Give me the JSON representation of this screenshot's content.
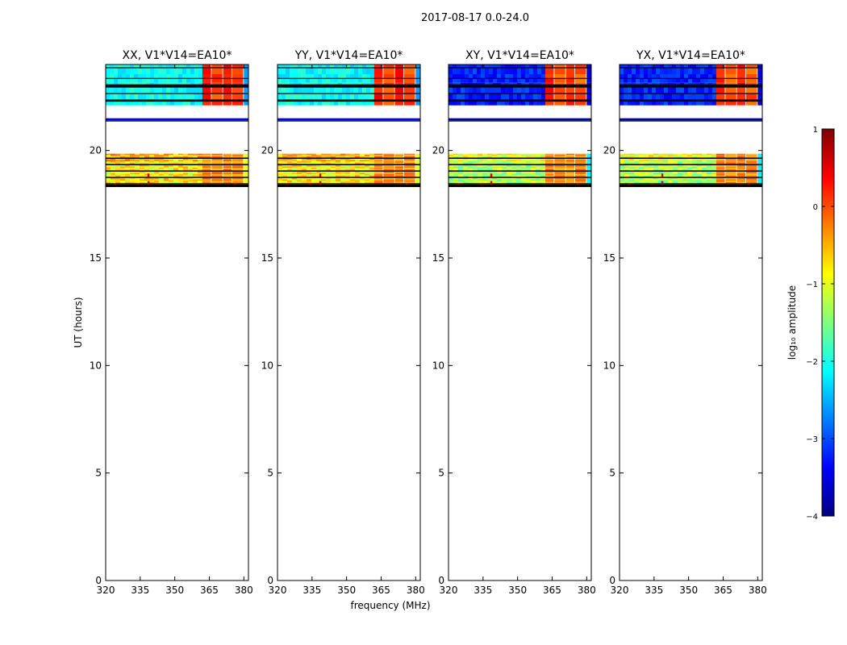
{
  "figure_title": "2017-08-17 0.0-24.0",
  "colors": {
    "jet_stops": [
      "#00007f",
      "#0000ff",
      "#007fff",
      "#00ffff",
      "#7fff7f",
      "#ffff00",
      "#ff7f00",
      "#ff0000",
      "#7f0000"
    ]
  },
  "chart_data": [
    {
      "type": "heatmap",
      "title": "XX, V1*V14=EA10*",
      "polarization": "XX",
      "ylabel": "UT (hours)",
      "xlim": [
        320,
        382
      ],
      "ylim": [
        0,
        24
      ],
      "xticks": [
        "320",
        "335",
        "350",
        "365",
        "380"
      ],
      "yticks": [
        "0",
        "5",
        "10",
        "15",
        "20"
      ],
      "data_coverage_hours": [
        [
          18.3,
          21.4
        ],
        [
          21.4,
          24.0
        ]
      ],
      "band_low_level_log10": -2.1,
      "band_high_level_log10": 0.2
    },
    {
      "type": "heatmap",
      "title": "YY, V1*V14=EA10*",
      "polarization": "YY",
      "xlabel": "frequency (MHz)",
      "xlim": [
        320,
        382
      ],
      "ylim": [
        0,
        24
      ],
      "xticks": [
        "320",
        "335",
        "350",
        "365",
        "380"
      ],
      "yticks": [
        "0",
        "5",
        "10",
        "15",
        "20"
      ],
      "data_coverage_hours": [
        [
          18.3,
          21.4
        ],
        [
          21.4,
          24.0
        ]
      ],
      "band_low_level_log10": -2.1,
      "band_high_level_log10": 0.2
    },
    {
      "type": "heatmap",
      "title": "XY, V1*V14=EA10*",
      "polarization": "XY",
      "xlim": [
        320,
        382
      ],
      "ylim": [
        0,
        24
      ],
      "xticks": [
        "320",
        "335",
        "350",
        "365",
        "380"
      ],
      "yticks": [
        "0",
        "5",
        "10",
        "15",
        "20"
      ],
      "data_coverage_hours": [
        [
          18.3,
          21.4
        ],
        [
          21.4,
          24.0
        ]
      ],
      "band_low_level_log10": -3.0,
      "band_high_level_log10": 0.1
    },
    {
      "type": "heatmap",
      "title": "YX, V1*V14=EA10*",
      "polarization": "YX",
      "xlim": [
        320,
        382
      ],
      "ylim": [
        0,
        24
      ],
      "xticks": [
        "320",
        "335",
        "350",
        "365",
        "380"
      ],
      "yticks": [
        "0",
        "5",
        "10",
        "15",
        "20"
      ],
      "data_coverage_hours": [
        [
          18.3,
          21.4
        ],
        [
          21.4,
          24.0
        ]
      ],
      "band_low_level_log10": -3.0,
      "band_high_level_log10": 0.1
    }
  ],
  "colorbar": {
    "label": "log₁₀ amplitude",
    "range": [
      -4,
      1
    ],
    "ticks": [
      "1",
      "0",
      "−1",
      "−2",
      "−3",
      "−4"
    ]
  }
}
